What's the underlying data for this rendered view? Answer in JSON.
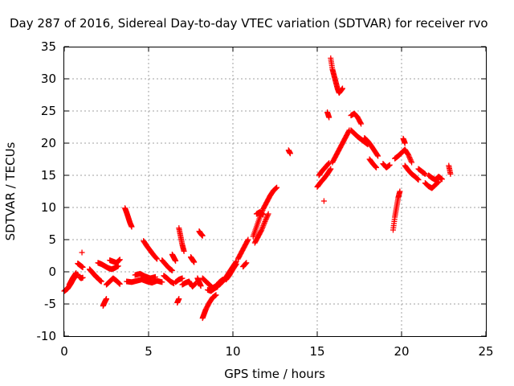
{
  "chart_data": {
    "type": "scatter",
    "title": "Day 287 of 2016, Sidereal Day-to-day VTEC variation (SDTVAR) for receiver rvo",
    "xlabel": "GPS time / hours",
    "ylabel": "SDTVAR / TECUs",
    "xlim": [
      0,
      25
    ],
    "ylim": [
      -10,
      35
    ],
    "xticks": [
      0,
      5,
      10,
      15,
      20,
      25
    ],
    "yticks": [
      -10,
      -5,
      0,
      5,
      10,
      15,
      20,
      25,
      30,
      35
    ],
    "grid": true,
    "marker": "+",
    "color": "#ff0000",
    "series": [
      {
        "name": "SDTVAR",
        "segments": [
          {
            "x": [
              0.0,
              0.1,
              0.2,
              0.3,
              0.4,
              0.5,
              0.6,
              0.7,
              0.8
            ],
            "y": [
              -3.0,
              -2.8,
              -2.6,
              -2.2,
              -1.8,
              -1.3,
              -0.9,
              -0.6,
              -0.4
            ]
          },
          {
            "x": [
              0.3,
              0.4,
              0.5,
              0.6,
              0.7
            ],
            "y": [
              -2.0,
              -1.5,
              -1.0,
              -0.6,
              -0.2
            ]
          },
          {
            "x": [
              0.8,
              0.9,
              1.0,
              1.1
            ],
            "y": [
              1.3,
              1.1,
              0.9,
              0.7
            ]
          },
          {
            "x": [
              0.9,
              1.0,
              1.1
            ],
            "y": [
              -0.8,
              -1.0,
              -0.9
            ]
          },
          {
            "x": [
              1.05
            ],
            "y": [
              3.0
            ]
          },
          {
            "x": [
              1.5,
              1.6,
              1.7,
              1.8,
              1.9,
              2.0,
              2.1,
              2.2
            ],
            "y": [
              0.4,
              0.1,
              -0.2,
              -0.5,
              -0.8,
              -1.0,
              -1.3,
              -1.5
            ]
          },
          {
            "x": [
              2.0,
              2.2,
              2.4,
              2.6,
              2.8,
              3.0,
              3.2
            ],
            "y": [
              1.4,
              1.2,
              0.9,
              0.6,
              0.4,
              0.6,
              0.9
            ]
          },
          {
            "x": [
              2.3,
              2.4,
              2.5
            ],
            "y": [
              -5.3,
              -4.7,
              -4.2
            ]
          },
          {
            "x": [
              2.5,
              2.7,
              2.9,
              3.1,
              3.3
            ],
            "y": [
              -2.0,
              -1.5,
              -1.0,
              -1.4,
              -1.9
            ]
          },
          {
            "x": [
              2.7,
              2.9,
              3.1,
              3.3
            ],
            "y": [
              1.8,
              1.6,
              1.4,
              1.9
            ]
          },
          {
            "x": [
              3.6,
              3.7,
              3.8,
              3.9,
              4.0
            ],
            "y": [
              9.9,
              9.2,
              8.4,
              7.6,
              7.0
            ]
          },
          {
            "x": [
              3.7,
              4.0,
              4.3,
              4.6,
              4.9,
              5.2,
              5.5,
              5.8
            ],
            "y": [
              -1.5,
              -1.6,
              -1.4,
              -1.2,
              -1.5,
              -1.7,
              -1.4,
              -1.6
            ]
          },
          {
            "x": [
              4.2,
              4.5,
              4.8,
              5.1,
              5.4
            ],
            "y": [
              -0.5,
              -0.3,
              -0.7,
              -1.0,
              -0.8
            ]
          },
          {
            "x": [
              4.7,
              4.9,
              5.1,
              5.3,
              5.5
            ],
            "y": [
              4.8,
              4.0,
              3.3,
              2.6,
              2.0
            ]
          },
          {
            "x": [
              5.8,
              6.0,
              6.2,
              6.4
            ],
            "y": [
              1.8,
              1.2,
              0.6,
              0.2
            ]
          },
          {
            "x": [
              5.9,
              6.1,
              6.3,
              6.5
            ],
            "y": [
              -0.6,
              -1.0,
              -1.5,
              -1.8
            ]
          },
          {
            "x": [
              6.4,
              6.5,
              6.6
            ],
            "y": [
              2.7,
              2.2,
              1.7
            ]
          },
          {
            "x": [
              6.6,
              6.8,
              7.0
            ],
            "y": [
              -1.6,
              -1.2,
              -1.0
            ]
          },
          {
            "x": [
              6.8,
              6.9,
              7.0,
              7.1
            ],
            "y": [
              6.8,
              5.5,
              4.2,
              3.2
            ]
          },
          {
            "x": [
              6.7,
              6.8
            ],
            "y": [
              -4.8,
              -4.2
            ]
          },
          {
            "x": [
              7.0,
              7.2,
              7.4,
              7.6,
              7.8
            ],
            "y": [
              -2.0,
              -1.7,
              -1.5,
              -2.3,
              -1.8
            ]
          },
          {
            "x": [
              7.5,
              7.6,
              7.7
            ],
            "y": [
              2.3,
              1.9,
              1.5
            ]
          },
          {
            "x": [
              7.9,
              8.0,
              8.1
            ],
            "y": [
              -1.0,
              -1.6,
              -2.2
            ]
          },
          {
            "x": [
              8.0,
              8.1,
              8.2
            ],
            "y": [
              6.3,
              5.9,
              5.6
            ]
          },
          {
            "x": [
              8.2,
              8.3,
              8.4,
              8.6,
              8.8,
              9.0
            ],
            "y": [
              -7.2,
              -6.5,
              -5.8,
              -4.8,
              -4.0,
              -3.6
            ]
          },
          {
            "x": [
              8.2,
              8.4,
              8.6,
              8.8,
              9.0,
              9.2,
              9.4
            ],
            "y": [
              -1.0,
              -1.5,
              -2.0,
              -2.5,
              -2.2,
              -1.6,
              -1.2
            ]
          },
          {
            "x": [
              8.5,
              8.7,
              8.9,
              9.1
            ],
            "y": [
              -2.8,
              -3.0,
              -2.6,
              -2.3
            ]
          },
          {
            "x": [
              9.2,
              9.4,
              9.6,
              9.8,
              10.0,
              10.2
            ],
            "y": [
              -2.0,
              -1.5,
              -0.8,
              0.0,
              0.8,
              1.6
            ]
          },
          {
            "x": [
              9.6,
              9.8,
              10.0,
              10.2
            ],
            "y": [
              -1.2,
              -0.5,
              0.4,
              1.2
            ]
          },
          {
            "x": [
              10.3,
              10.5,
              10.7,
              10.9
            ],
            "y": [
              2.0,
              3.0,
              4.0,
              5.0
            ]
          },
          {
            "x": [
              10.6,
              10.8
            ],
            "y": [
              0.8,
              1.4
            ]
          },
          {
            "x": [
              11.2,
              11.4,
              11.6,
              11.8,
              12.0,
              12.2,
              12.4,
              12.6
            ],
            "y": [
              5.5,
              7.0,
              8.5,
              9.8,
              10.8,
              11.8,
              12.6,
              13.1
            ]
          },
          {
            "x": [
              11.3,
              11.5,
              11.7,
              11.9,
              12.1
            ],
            "y": [
              4.5,
              5.5,
              6.5,
              7.8,
              9.0
            ]
          },
          {
            "x": [
              11.4,
              11.6,
              11.8
            ],
            "y": [
              9.0,
              9.3,
              8.9
            ]
          },
          {
            "x": [
              13.3,
              13.4
            ],
            "y": [
              18.9,
              18.4
            ]
          },
          {
            "x": [
              15.0,
              15.2,
              15.4,
              15.6,
              15.8
            ],
            "y": [
              13.2,
              13.9,
              14.5,
              15.2,
              16.0
            ]
          },
          {
            "x": [
              15.1,
              15.3,
              15.5,
              15.7
            ],
            "y": [
              15.0,
              15.7,
              16.3,
              16.9
            ]
          },
          {
            "x": [
              15.4
            ],
            "y": [
              11.0
            ]
          },
          {
            "x": [
              15.6,
              15.7
            ],
            "y": [
              24.8,
              24.0
            ]
          },
          {
            "x": [
              15.8,
              15.9,
              16.0,
              16.1,
              16.2,
              16.3,
              16.5
            ],
            "y": [
              33.2,
              31.5,
              30.5,
              29.5,
              28.5,
              27.8,
              28.5
            ]
          },
          {
            "x": [
              15.9,
              16.1,
              16.3,
              16.5,
              16.7,
              16.9
            ],
            "y": [
              17.0,
              18.0,
              19.0,
              20.0,
              21.0,
              22.0
            ]
          },
          {
            "x": [
              17.0,
              17.2,
              17.4,
              17.6
            ],
            "y": [
              24.3,
              24.6,
              24.0,
              23.0
            ]
          },
          {
            "x": [
              17.0,
              17.2,
              17.4,
              17.6,
              17.8,
              18.0
            ],
            "y": [
              22.0,
              21.5,
              21.0,
              20.6,
              20.2,
              19.8
            ]
          },
          {
            "x": [
              17.8,
              18.0,
              18.2,
              18.4,
              18.6
            ],
            "y": [
              20.8,
              20.3,
              19.6,
              18.8,
              18.0
            ]
          },
          {
            "x": [
              18.1,
              18.3,
              18.5
            ],
            "y": [
              17.5,
              16.8,
              16.2
            ]
          },
          {
            "x": [
              18.9,
              19.1,
              19.3
            ],
            "y": [
              16.8,
              16.2,
              16.6
            ]
          },
          {
            "x": [
              19.5,
              19.6,
              19.7,
              19.8,
              19.9
            ],
            "y": [
              6.5,
              8.5,
              10.0,
              11.5,
              12.5
            ]
          },
          {
            "x": [
              19.6,
              19.8,
              20.0,
              20.2,
              20.4,
              20.6
            ],
            "y": [
              17.6,
              18.0,
              18.5,
              19.0,
              18.2,
              17.0
            ]
          },
          {
            "x": [
              20.1,
              20.2
            ],
            "y": [
              20.7,
              20.0
            ]
          },
          {
            "x": [
              20.2,
              20.4,
              20.6,
              20.8,
              21.0
            ],
            "y": [
              16.5,
              15.8,
              15.2,
              14.8,
              14.3
            ]
          },
          {
            "x": [
              21.0,
              21.2,
              21.4
            ],
            "y": [
              16.0,
              15.6,
              15.2
            ]
          },
          {
            "x": [
              21.4,
              21.6,
              21.8,
              22.0,
              22.2
            ],
            "y": [
              13.8,
              13.3,
              13.0,
              13.5,
              14.0
            ]
          },
          {
            "x": [
              21.6,
              21.8,
              22.0,
              22.2,
              22.4
            ],
            "y": [
              15.0,
              14.6,
              14.3,
              14.8,
              14.4
            ]
          },
          {
            "x": [
              22.8,
              22.9
            ],
            "y": [
              16.5,
              15.2
            ]
          }
        ]
      }
    ]
  }
}
